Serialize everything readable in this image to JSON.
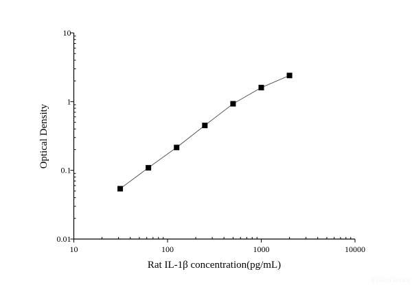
{
  "chart_data": {
    "type": "line",
    "title": "",
    "xlabel": "Rat IL-1β concentration(pg/mL)",
    "ylabel": "Optical Density",
    "xscale": "log",
    "yscale": "log",
    "xlim": [
      10,
      10000
    ],
    "ylim": [
      0.01,
      10
    ],
    "xticks": [
      "10",
      "100",
      "1000",
      "10000"
    ],
    "yticks": [
      "0.01",
      "0.1",
      "1",
      "10"
    ],
    "grid": false,
    "marker": "square",
    "series": [
      {
        "x": [
          31.25,
          62.5,
          125,
          250,
          500,
          1000,
          2000
        ],
        "y": [
          0.054,
          0.109,
          0.215,
          0.45,
          0.93,
          1.6,
          2.4
        ]
      }
    ],
    "colors": {
      "line": "#555555",
      "marker": "#000000"
    }
  },
  "watermark": "Elabscience"
}
